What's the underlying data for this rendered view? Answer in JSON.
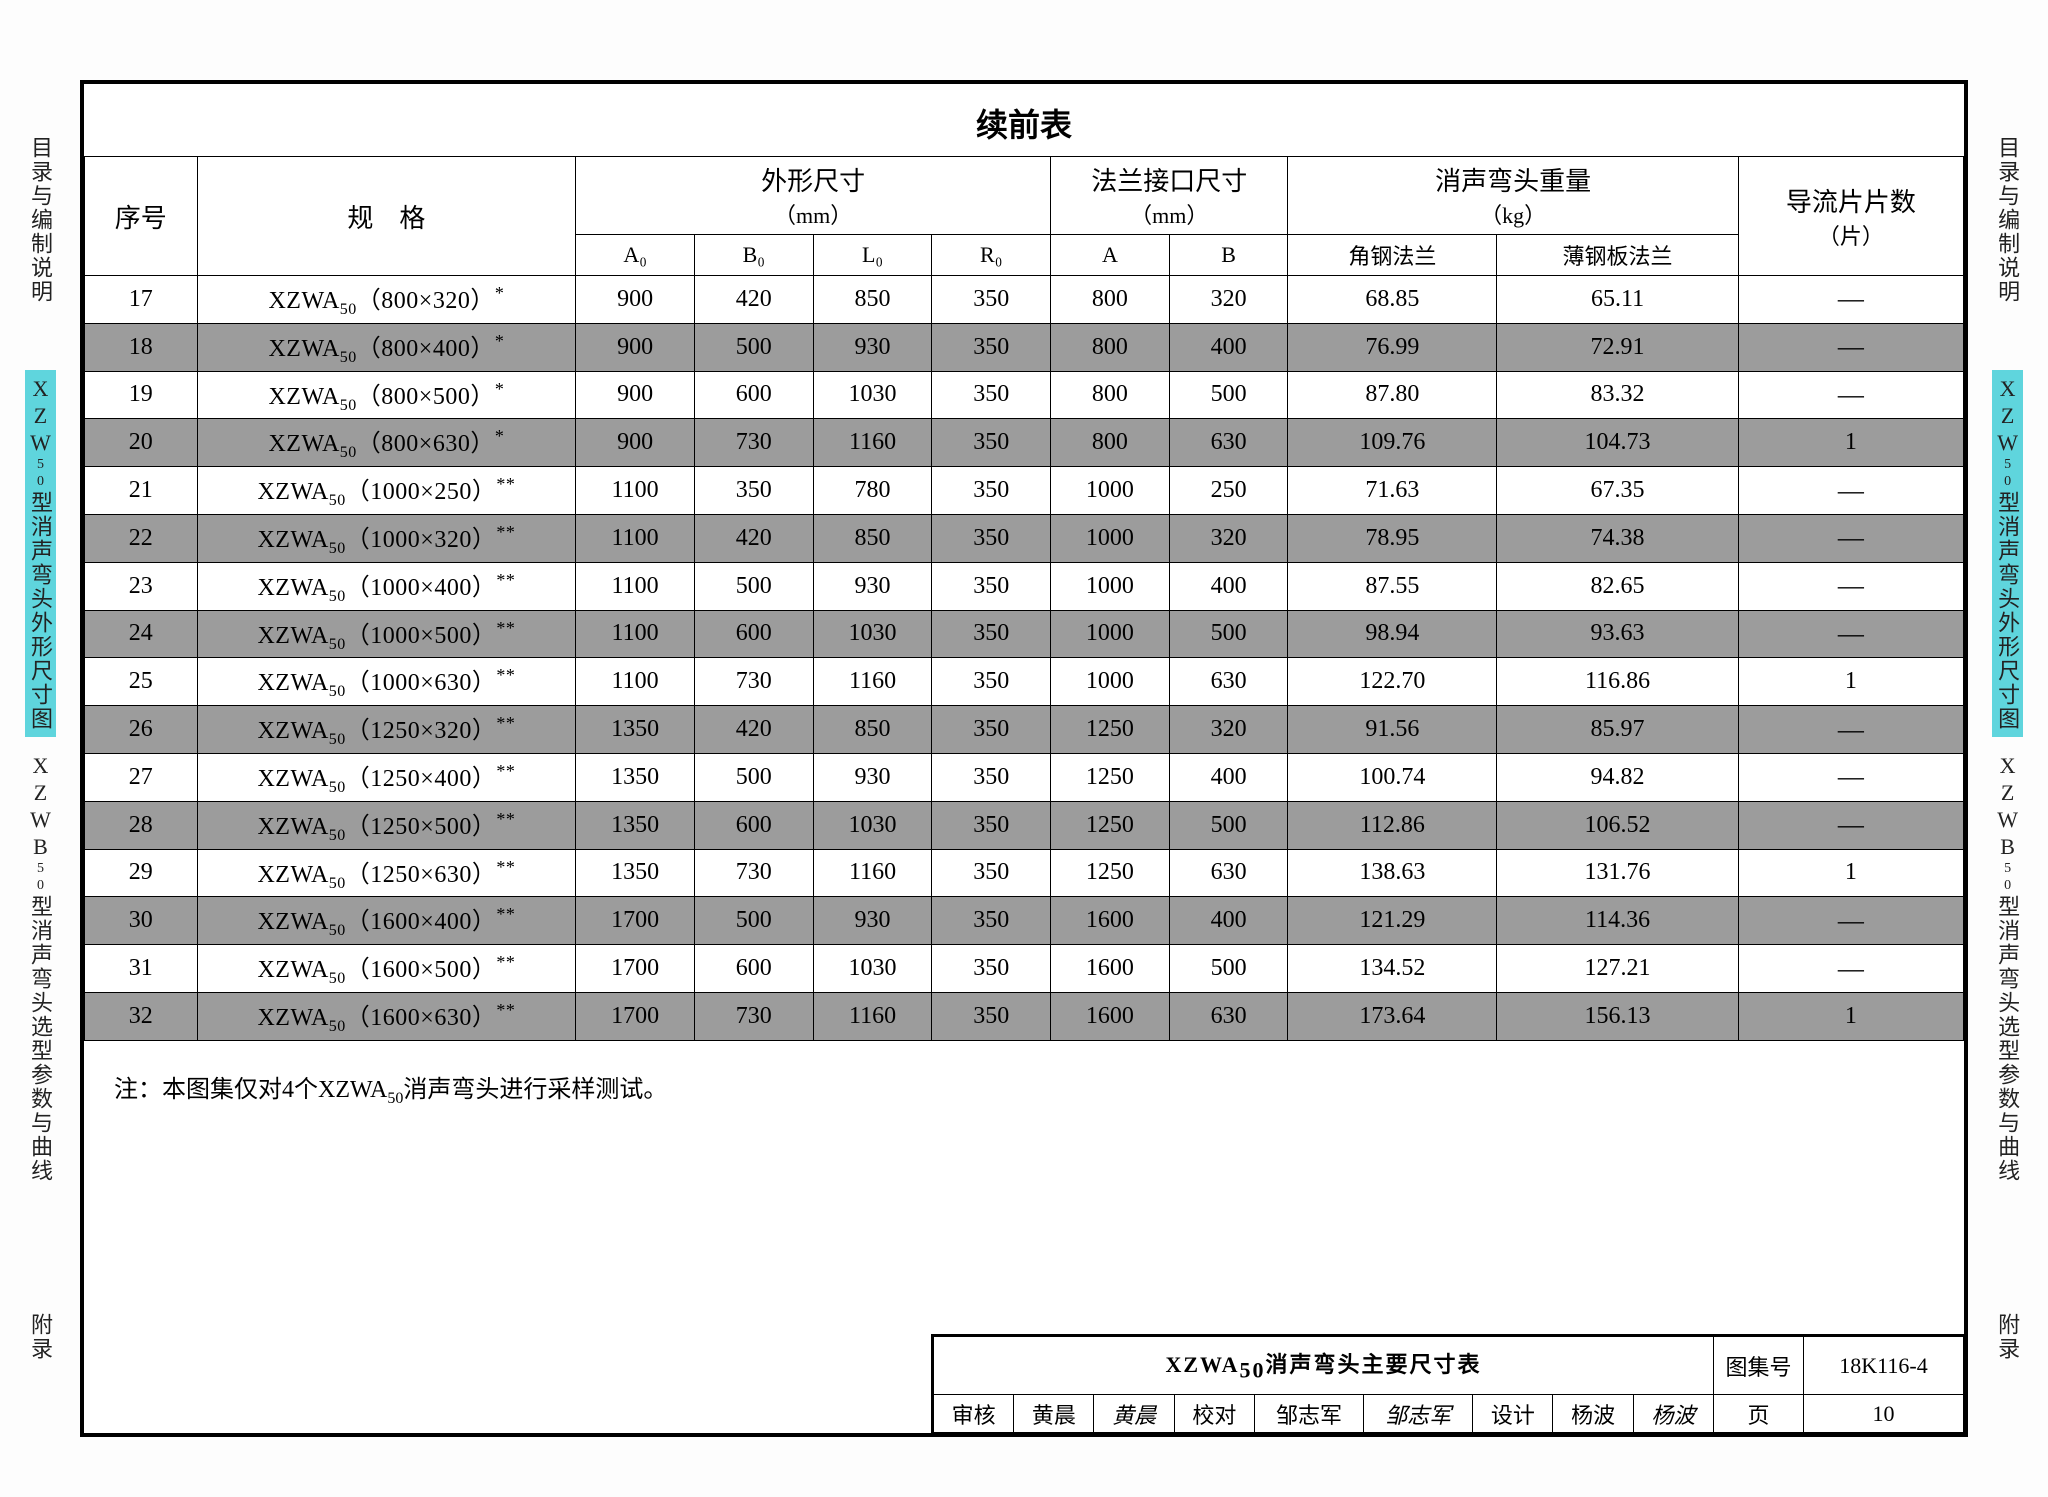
{
  "frame_title": "续前表",
  "side_tabs": {
    "t1": "目录与编制说明",
    "t2_prefix": "XZW",
    "t2_sub": "50",
    "t2_rest": "型消声弯头外形尺寸图",
    "t3_prefix": "XZWB",
    "t3_sub": "50",
    "t3_rest": "型消声弯头选型参数与曲线",
    "t4": "附录"
  },
  "headers": {
    "seq": "序号",
    "spec": "规　格",
    "dims_group": "外形尺寸",
    "dims_unit": "（mm）",
    "flange_group": "法兰接口尺寸",
    "flange_unit": "（mm）",
    "weight_group": "消声弯头重量",
    "weight_unit": "（kg）",
    "fins": "导流片片数",
    "fins_unit": "（片）",
    "A0": "A₀",
    "B0": "B₀",
    "L0": "L₀",
    "R0": "R₀",
    "A": "A",
    "B": "B",
    "w1": "角钢法兰",
    "w2": "薄钢板法兰"
  },
  "spec_prefix": "XZWA",
  "spec_sub": "50",
  "rows": [
    {
      "n": "17",
      "dim": "800×320",
      "ast": "*",
      "A0": "900",
      "B0": "420",
      "L0": "850",
      "R0": "350",
      "A": "800",
      "B": "320",
      "w1": "68.85",
      "w2": "65.11",
      "fin": "—",
      "shade": false
    },
    {
      "n": "18",
      "dim": "800×400",
      "ast": "*",
      "A0": "900",
      "B0": "500",
      "L0": "930",
      "R0": "350",
      "A": "800",
      "B": "400",
      "w1": "76.99",
      "w2": "72.91",
      "fin": "—",
      "shade": true
    },
    {
      "n": "19",
      "dim": "800×500",
      "ast": "*",
      "A0": "900",
      "B0": "600",
      "L0": "1030",
      "R0": "350",
      "A": "800",
      "B": "500",
      "w1": "87.80",
      "w2": "83.32",
      "fin": "—",
      "shade": false
    },
    {
      "n": "20",
      "dim": "800×630",
      "ast": "*",
      "A0": "900",
      "B0": "730",
      "L0": "1160",
      "R0": "350",
      "A": "800",
      "B": "630",
      "w1": "109.76",
      "w2": "104.73",
      "fin": "1",
      "shade": true
    },
    {
      "n": "21",
      "dim": "1000×250",
      "ast": "**",
      "A0": "1100",
      "B0": "350",
      "L0": "780",
      "R0": "350",
      "A": "1000",
      "B": "250",
      "w1": "71.63",
      "w2": "67.35",
      "fin": "—",
      "shade": false
    },
    {
      "n": "22",
      "dim": "1000×320",
      "ast": "**",
      "A0": "1100",
      "B0": "420",
      "L0": "850",
      "R0": "350",
      "A": "1000",
      "B": "320",
      "w1": "78.95",
      "w2": "74.38",
      "fin": "—",
      "shade": true
    },
    {
      "n": "23",
      "dim": "1000×400",
      "ast": "**",
      "A0": "1100",
      "B0": "500",
      "L0": "930",
      "R0": "350",
      "A": "1000",
      "B": "400",
      "w1": "87.55",
      "w2": "82.65",
      "fin": "—",
      "shade": false
    },
    {
      "n": "24",
      "dim": "1000×500",
      "ast": "**",
      "A0": "1100",
      "B0": "600",
      "L0": "1030",
      "R0": "350",
      "A": "1000",
      "B": "500",
      "w1": "98.94",
      "w2": "93.63",
      "fin": "—",
      "shade": true
    },
    {
      "n": "25",
      "dim": "1000×630",
      "ast": "**",
      "A0": "1100",
      "B0": "730",
      "L0": "1160",
      "R0": "350",
      "A": "1000",
      "B": "630",
      "w1": "122.70",
      "w2": "116.86",
      "fin": "1",
      "shade": false
    },
    {
      "n": "26",
      "dim": "1250×320",
      "ast": "**",
      "A0": "1350",
      "B0": "420",
      "L0": "850",
      "R0": "350",
      "A": "1250",
      "B": "320",
      "w1": "91.56",
      "w2": "85.97",
      "fin": "—",
      "shade": true
    },
    {
      "n": "27",
      "dim": "1250×400",
      "ast": "**",
      "A0": "1350",
      "B0": "500",
      "L0": "930",
      "R0": "350",
      "A": "1250",
      "B": "400",
      "w1": "100.74",
      "w2": "94.82",
      "fin": "—",
      "shade": false
    },
    {
      "n": "28",
      "dim": "1250×500",
      "ast": "**",
      "A0": "1350",
      "B0": "600",
      "L0": "1030",
      "R0": "350",
      "A": "1250",
      "B": "500",
      "w1": "112.86",
      "w2": "106.52",
      "fin": "—",
      "shade": true
    },
    {
      "n": "29",
      "dim": "1250×630",
      "ast": "**",
      "A0": "1350",
      "B0": "730",
      "L0": "1160",
      "R0": "350",
      "A": "1250",
      "B": "630",
      "w1": "138.63",
      "w2": "131.76",
      "fin": "1",
      "shade": false
    },
    {
      "n": "30",
      "dim": "1600×400",
      "ast": "**",
      "A0": "1700",
      "B0": "500",
      "L0": "930",
      "R0": "350",
      "A": "1600",
      "B": "400",
      "w1": "121.29",
      "w2": "114.36",
      "fin": "—",
      "shade": true
    },
    {
      "n": "31",
      "dim": "1600×500",
      "ast": "**",
      "A0": "1700",
      "B0": "600",
      "L0": "1030",
      "R0": "350",
      "A": "1600",
      "B": "500",
      "w1": "134.52",
      "w2": "127.21",
      "fin": "—",
      "shade": false
    },
    {
      "n": "32",
      "dim": "1600×630",
      "ast": "**",
      "A0": "1700",
      "B0": "730",
      "L0": "1160",
      "R0": "350",
      "A": "1600",
      "B": "630",
      "w1": "173.64",
      "w2": "156.13",
      "fin": "1",
      "shade": true
    }
  ],
  "note_prefix": "注：本图集仅对4个XZWA",
  "note_sub": "50",
  "note_suffix": "消声弯头进行采样测试。",
  "titleblock": {
    "title_prefix": "XZWA",
    "title_sub": "50",
    "title_suffix": "消声弯头主要尺寸表",
    "book_lbl": "图集号",
    "book_val": "18K116-4",
    "review_lbl": "审核",
    "review_name": "黄晨",
    "review_sign": "黄晨",
    "check_lbl": "校对",
    "check_name": "邹志军",
    "check_sign": "邹志军",
    "design_lbl": "设计",
    "design_name": "杨波",
    "design_sign": "杨波",
    "page_lbl": "页",
    "page_val": "10"
  },
  "colors": {
    "highlight": "#5fd5dd",
    "shade": "#9c9c9c",
    "border": "#000000",
    "bg": "#fdfdfd"
  }
}
